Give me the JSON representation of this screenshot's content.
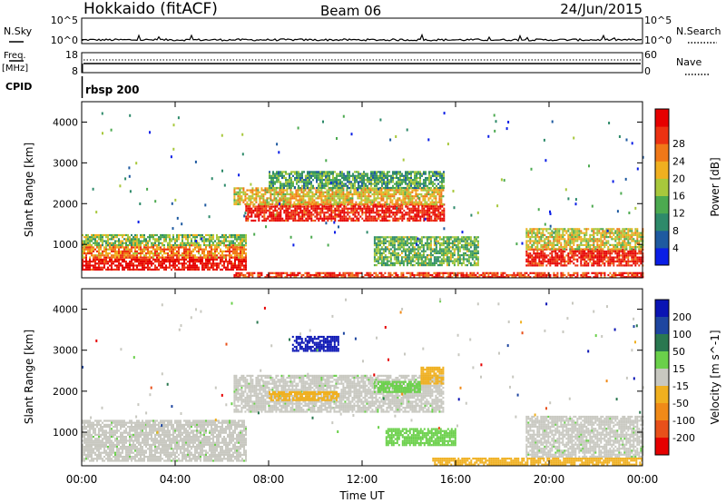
{
  "header": {
    "station": "Hokkaido (fitACF)",
    "beam": "Beam 06",
    "date": "24/Jun/2015"
  },
  "noise_panel": {
    "left_label": "N.Sky",
    "right_label": "N.Search",
    "right_line_style": "dotted",
    "left_ticks": [
      "10^5",
      "10^0"
    ],
    "right_ticks": [
      "10^5",
      "10^0"
    ]
  },
  "freq_panel": {
    "left_label": "Freq.",
    "left_unit": "[MHz]",
    "right_label": "Nave",
    "right_line_style": "dotted",
    "left_ticks": [
      "18",
      "8"
    ],
    "right_ticks": [
      "60",
      "0"
    ]
  },
  "cpid": {
    "label": "CPID",
    "program": "rbsp 200"
  },
  "colors": {
    "white_background": "#ffffff",
    "ground_scatter": "#c8c8c0"
  },
  "chart_data": [
    {
      "type": "heatmap",
      "panel": "power",
      "title": "",
      "xlabel": "",
      "ylabel": "Slant Range [km]",
      "x_ticks": [
        "00:00",
        "04:00",
        "08:00",
        "12:00",
        "16:00",
        "20:00",
        "00:00"
      ],
      "x_range_hours": [
        0,
        24
      ],
      "y_ticks": [
        1000,
        2000,
        3000,
        4000
      ],
      "ylim": [
        180,
        4500
      ],
      "colorbar": {
        "label": "Power [dB]",
        "ticks": [
          4,
          8,
          12,
          16,
          20,
          24,
          28
        ],
        "colors": [
          "#0a1ee6",
          "#1e5aa0",
          "#2e8a6a",
          "#4caa50",
          "#a8c83c",
          "#f0b020",
          "#f07818",
          "#ec3212",
          "#e60000"
        ]
      },
      "regions": [
        {
          "t": [
            0,
            7
          ],
          "r": [
            400,
            700
          ],
          "level": 0.95
        },
        {
          "t": [
            0,
            7
          ],
          "r": [
            700,
            1000
          ],
          "level": 0.7
        },
        {
          "t": [
            0,
            7
          ],
          "r": [
            1000,
            1250
          ],
          "level": 0.45
        },
        {
          "t": [
            7,
            15.5
          ],
          "r": [
            1600,
            2000
          ],
          "level": 0.92
        },
        {
          "t": [
            6.5,
            15.5
          ],
          "r": [
            2000,
            2400
          ],
          "level": 0.6
        },
        {
          "t": [
            8,
            15.5
          ],
          "r": [
            2400,
            2800
          ],
          "level": 0.35
        },
        {
          "t": [
            19,
            24
          ],
          "r": [
            500,
            900
          ],
          "level": 0.9
        },
        {
          "t": [
            19,
            24
          ],
          "r": [
            900,
            1400
          ],
          "level": 0.55
        },
        {
          "t": [
            12.5,
            17
          ],
          "r": [
            500,
            1200
          ],
          "level": 0.4
        },
        {
          "t": [
            6.5,
            24
          ],
          "r": [
            200,
            320
          ],
          "level": 0.85
        }
      ]
    },
    {
      "type": "heatmap",
      "panel": "velocity",
      "title": "",
      "xlabel": "Time UT",
      "ylabel": "Slant Range [km]",
      "x_ticks": [
        "00:00",
        "04:00",
        "08:00",
        "12:00",
        "16:00",
        "20:00",
        "00:00"
      ],
      "x_range_hours": [
        0,
        24
      ],
      "y_ticks": [
        1000,
        2000,
        3000,
        4000
      ],
      "ylim": [
        180,
        4500
      ],
      "colorbar": {
        "label": "Velocity [m s^-1]",
        "ticks": [
          200,
          100,
          50,
          15,
          -15,
          -50,
          -100,
          -200
        ],
        "colors": [
          "#0a14b4",
          "#1e46a0",
          "#2a7850",
          "#6ad04a",
          "#c8c8c0",
          "#f0b020",
          "#f08a18",
          "#e8501a",
          "#e60000"
        ]
      },
      "regions": [
        {
          "t": [
            0,
            7
          ],
          "r": [
            300,
            1300
          ],
          "class": "ground"
        },
        {
          "t": [
            6.5,
            15.5
          ],
          "r": [
            1500,
            2400
          ],
          "class": "ground"
        },
        {
          "t": [
            19,
            24
          ],
          "r": [
            400,
            1400
          ],
          "class": "ground"
        },
        {
          "t": [
            9,
            11
          ],
          "r": [
            3000,
            3350
          ],
          "class": "v200"
        },
        {
          "t": [
            12.5,
            14.5
          ],
          "r": [
            2000,
            2250
          ],
          "class": "v15"
        },
        {
          "t": [
            13,
            16
          ],
          "r": [
            700,
            1100
          ],
          "class": "v15"
        },
        {
          "t": [
            14.5,
            15.5
          ],
          "r": [
            2200,
            2600
          ],
          "class": "vneg50"
        },
        {
          "t": [
            8,
            11
          ],
          "r": [
            1800,
            2000
          ],
          "class": "vneg50"
        },
        {
          "t": [
            15,
            24
          ],
          "r": [
            200,
            380
          ],
          "class": "vneg50"
        }
      ]
    }
  ]
}
